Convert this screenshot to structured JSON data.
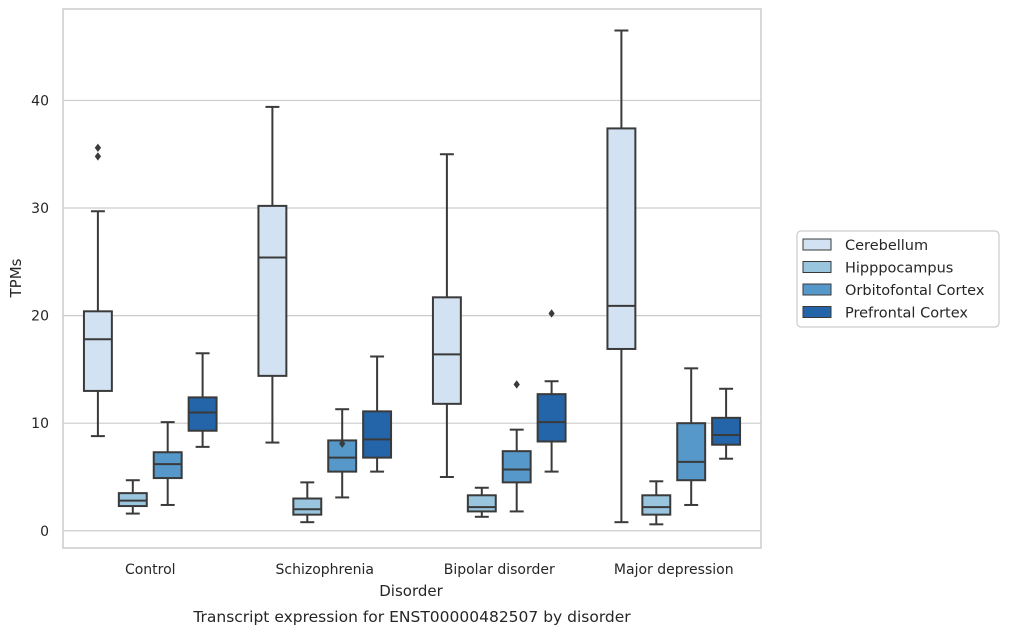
{
  "chart_data": {
    "type": "box",
    "caption": "Transcript expression for ENST00000482507 by disorder",
    "xlabel": "Disorder",
    "ylabel": "TPMs",
    "ylim": [
      -1.6,
      48.5
    ],
    "yticks": [
      0,
      10,
      20,
      30,
      40
    ],
    "grid": true,
    "legend_position": "right",
    "categories": [
      "Control",
      "Schizophrenia",
      "Bipolar disorder",
      "Major depression"
    ],
    "series": [
      {
        "name": "Cerebellum",
        "color": "#d2e2f2",
        "boxes": [
          {
            "whisker_low": 8.8,
            "q1": 13.0,
            "median": 17.8,
            "q3": 20.4,
            "whisker_high": 29.7,
            "outliers": [
              34.8,
              35.6
            ]
          },
          {
            "whisker_low": 8.2,
            "q1": 14.4,
            "median": 25.4,
            "q3": 30.2,
            "whisker_high": 39.4,
            "outliers": []
          },
          {
            "whisker_low": 5.0,
            "q1": 11.8,
            "median": 16.4,
            "q3": 21.7,
            "whisker_high": 35.0,
            "outliers": []
          },
          {
            "whisker_low": 0.8,
            "q1": 16.9,
            "median": 20.9,
            "q3": 37.4,
            "whisker_high": 46.5,
            "outliers": []
          }
        ]
      },
      {
        "name": "Hipppocampus",
        "color": "#9ac5df",
        "boxes": [
          {
            "whisker_low": 1.6,
            "q1": 2.3,
            "median": 2.8,
            "q3": 3.5,
            "whisker_high": 4.7,
            "outliers": []
          },
          {
            "whisker_low": 0.8,
            "q1": 1.5,
            "median": 2.0,
            "q3": 3.0,
            "whisker_high": 4.5,
            "outliers": []
          },
          {
            "whisker_low": 1.3,
            "q1": 1.8,
            "median": 2.2,
            "q3": 3.3,
            "whisker_high": 4.0,
            "outliers": []
          },
          {
            "whisker_low": 0.6,
            "q1": 1.5,
            "median": 2.2,
            "q3": 3.3,
            "whisker_high": 4.6,
            "outliers": []
          }
        ]
      },
      {
        "name": "Orbitofontal Cortex",
        "color": "#5598c9",
        "boxes": [
          {
            "whisker_low": 2.4,
            "q1": 4.9,
            "median": 6.2,
            "q3": 7.3,
            "whisker_high": 10.1,
            "outliers": []
          },
          {
            "whisker_low": 3.1,
            "q1": 5.5,
            "median": 6.8,
            "q3": 8.4,
            "whisker_high": 11.3,
            "outliers": [
              8.1
            ]
          },
          {
            "whisker_low": 1.8,
            "q1": 4.5,
            "median": 5.7,
            "q3": 7.4,
            "whisker_high": 9.4,
            "outliers": [
              13.6
            ]
          },
          {
            "whisker_low": 2.4,
            "q1": 4.7,
            "median": 6.4,
            "q3": 10.0,
            "whisker_high": 15.1,
            "outliers": []
          }
        ]
      },
      {
        "name": "Prefrontal Cortex",
        "color": "#2464a8",
        "boxes": [
          {
            "whisker_low": 7.8,
            "q1": 9.3,
            "median": 11.0,
            "q3": 12.4,
            "whisker_high": 16.5,
            "outliers": []
          },
          {
            "whisker_low": 5.5,
            "q1": 6.8,
            "median": 8.5,
            "q3": 11.1,
            "whisker_high": 16.2,
            "outliers": []
          },
          {
            "whisker_low": 5.5,
            "q1": 8.3,
            "median": 10.1,
            "q3": 12.7,
            "whisker_high": 13.9,
            "outliers": [
              20.2
            ]
          },
          {
            "whisker_low": 6.7,
            "q1": 8.0,
            "median": 8.9,
            "q3": 10.5,
            "whisker_high": 13.2,
            "outliers": []
          }
        ]
      }
    ]
  }
}
